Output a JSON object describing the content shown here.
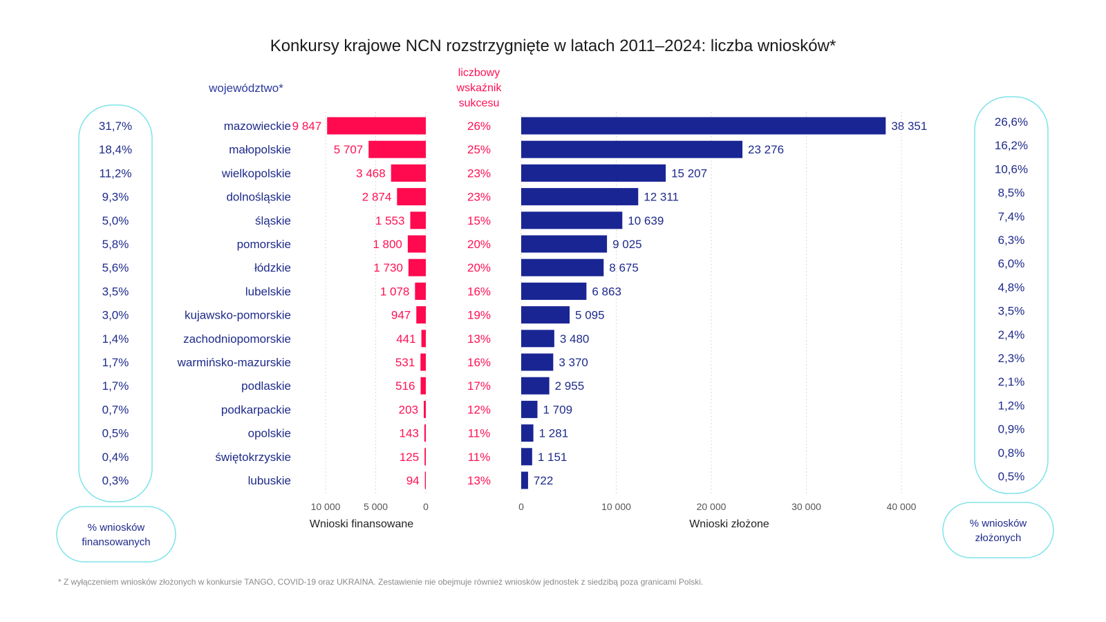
{
  "title": "Konkursy krajowe NCN rozstrzygnięte w latach 2011–2024: liczba wniosków*",
  "header_region": "województwo*",
  "header_success": [
    "liczbowy",
    "wskaźnik",
    "sukcesu"
  ],
  "left_pill_label": [
    "% wniosków",
    "finansowanych"
  ],
  "right_pill_label": [
    "% wniosków",
    "złożonych"
  ],
  "axis_funded_title": "Wnioski finansowane",
  "axis_submitted_title": "Wnioski złożone",
  "footnote": "* Z wyłączeniem wniosków złożonych w konkursie TANGO, COVID-19 oraz UKRAINA. Zestawienie nie obejmuje również wniosków jednostek z siedzibą poza granicami Polski.",
  "colors": {
    "funded": "#ff0a4f",
    "submitted": "#1a2594",
    "pill": "#7fe3ea"
  },
  "chart_data": {
    "type": "bar",
    "categories": [
      "mazowieckie",
      "małopolskie",
      "wielkopolskie",
      "dolnośląskie",
      "śląskie",
      "pomorskie",
      "łódzkie",
      "lubelskie",
      "kujawsko-pomorskie",
      "zachodniopomorskie",
      "warmińsko-mazurskie",
      "podlaskie",
      "podkarpackie",
      "opolskie",
      "świętokrzyskie",
      "lubuskie"
    ],
    "funded": {
      "values": [
        9847,
        5707,
        3468,
        2874,
        1553,
        1800,
        1730,
        1078,
        947,
        441,
        531,
        516,
        203,
        143,
        125,
        94
      ],
      "labels": [
        "9 847",
        "5 707",
        "3 468",
        "2 874",
        "1 553",
        "1 800",
        "1 730",
        "1 078",
        "947",
        "441",
        "531",
        "516",
        "203",
        "143",
        "125",
        "94"
      ],
      "xlim": [
        0,
        10000
      ],
      "ticks": [
        "10 000",
        "5 000",
        "0"
      ],
      "tick_values": [
        10000,
        5000,
        0
      ]
    },
    "submitted": {
      "values": [
        38351,
        23276,
        15207,
        12311,
        10639,
        9025,
        8675,
        6863,
        5095,
        3480,
        3370,
        2955,
        1709,
        1281,
        1151,
        722
      ],
      "labels": [
        "38 351",
        "23 276",
        "15 207",
        "12 311",
        "10 639",
        "9 025",
        "8 675",
        "6 863",
        "5 095",
        "3 480",
        "3 370",
        "2 955",
        "1 709",
        "1 281",
        "1 151",
        "722"
      ],
      "xlim": [
        0,
        40000
      ],
      "ticks": [
        "0",
        "10 000",
        "20 000",
        "30 000",
        "40 000"
      ],
      "tick_values": [
        0,
        10000,
        20000,
        30000,
        40000
      ]
    },
    "success_rate": [
      "26%",
      "25%",
      "23%",
      "23%",
      "15%",
      "20%",
      "20%",
      "16%",
      "19%",
      "13%",
      "16%",
      "17%",
      "12%",
      "11%",
      "11%",
      "13%"
    ],
    "pct_funded": [
      "31,7%",
      "18,4%",
      "11,2%",
      "9,3%",
      "5,0%",
      "5,8%",
      "5,6%",
      "3,5%",
      "3,0%",
      "1,4%",
      "1,7%",
      "1,7%",
      "0,7%",
      "0,5%",
      "0,4%",
      "0,3%"
    ],
    "pct_submitted": [
      "26,6%",
      "16,2%",
      "10,6%",
      "8,5%",
      "7,4%",
      "6,3%",
      "6,0%",
      "4,8%",
      "3,5%",
      "2,4%",
      "2,3%",
      "2,1%",
      "1,2%",
      "0,9%",
      "0,8%",
      "0,5%"
    ]
  }
}
